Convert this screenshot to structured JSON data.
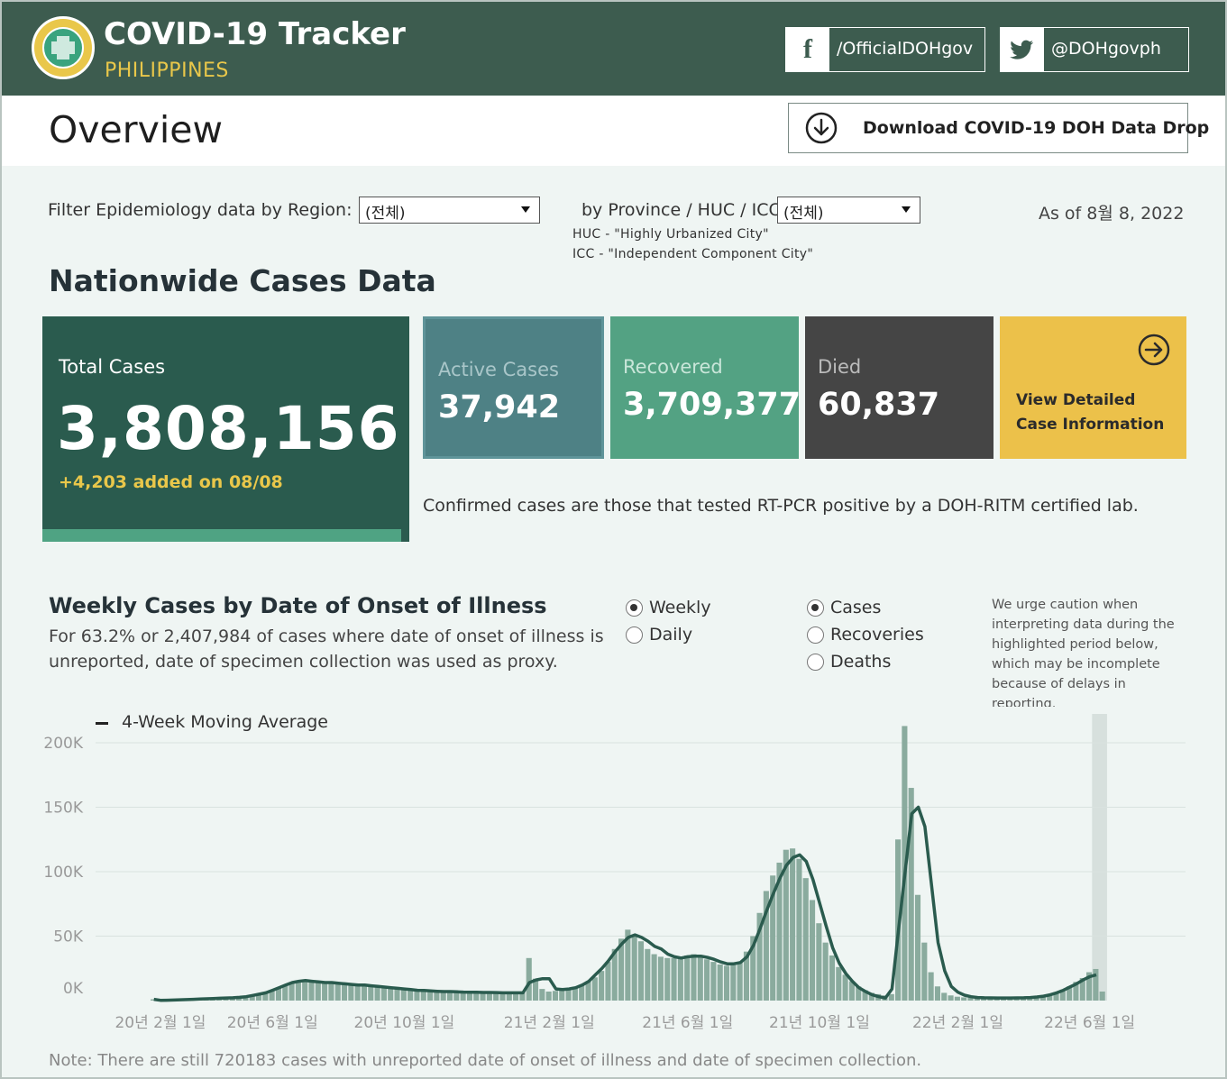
{
  "header": {
    "title": "COVID-19 Tracker",
    "subtitle": "PHILIPPINES",
    "facebook": "/OfficialDOHgov",
    "twitter": "@DOHgovph"
  },
  "overview": {
    "title": "Overview",
    "download_label": "Download COVID-19 DOH Data Drop"
  },
  "filters": {
    "region_label": "Filter Epidemiology data by Region:",
    "region_value": "(전체)",
    "province_label": "by Province / HUC / ICC:",
    "province_value": "(전체)",
    "huc_note": "HUC - \"Highly Urbanized City\"",
    "icc_note": "ICC - \"Independent Component City\"",
    "as_of": "As of 8월 8, 2022"
  },
  "nationwide": {
    "title": "Nationwide Cases Data",
    "total_label": "Total Cases",
    "total_value": "3,808,156",
    "added": "+4,203 added on 08/08",
    "active_label": "Active Cases",
    "active_value": "37,942",
    "recovered_label": "Recovered",
    "recovered_value": "3,709,377",
    "died_label": "Died",
    "died_value": "60,837",
    "detail_line1": "View Detailed",
    "detail_line2": "Case Information",
    "confirmed_note": "Confirmed cases are those that tested RT-PCR positive by a DOH-RITM certified lab."
  },
  "chart_section": {
    "title": "Weekly Cases by Date of Onset of Illness",
    "desc": "For 63.2% or 2,407,984 of cases where date of onset of illness is unreported, date of specimen collection was used as proxy.",
    "period_options": [
      "Weekly",
      "Daily"
    ],
    "period_selected": "Weekly",
    "metric_options": [
      "Cases",
      "Recoveries",
      "Deaths"
    ],
    "metric_selected": "Cases",
    "caution": "We urge caution when interpreting data during the highlighted period below, which may be incomplete because of delays in reporting.",
    "legend": "4-Week Moving Average",
    "footer_note": "Note: There are still 720183 cases with unreported date of onset of illness and date of specimen collection."
  },
  "colors": {
    "header_bg": "#3d5c4f",
    "accent_yellow": "#e9c74a",
    "total_card": "#2a5b4e",
    "active_card": "#4e8185",
    "recovered_card": "#53a283",
    "died_card": "#454545",
    "bar": "#8aab9e",
    "line": "#2a5b4e"
  },
  "chart_data": {
    "type": "bar",
    "title": "Weekly Cases by Date of Onset of Illness",
    "xlabel": "",
    "ylabel": "",
    "ylim": [
      0,
      210000
    ],
    "y_ticks": [
      0,
      50000,
      100000,
      150000,
      200000
    ],
    "y_tick_labels": [
      "0K",
      "50K",
      "100K",
      "150K",
      "200K"
    ],
    "x_tick_labels": [
      "20년 2월 1일",
      "20년 6월 1일",
      "20년 10월 1일",
      "21년 2월 1일",
      "21년 6월 1일",
      "21년 10월 1일",
      "22년 2월 1일",
      "22년 6월 1일"
    ],
    "x_tick_week_index": [
      1,
      18,
      38,
      60,
      81,
      101,
      122,
      142
    ],
    "series": [
      {
        "name": "Weekly Cases",
        "values": [
          1000,
          200,
          300,
          400,
          600,
          800,
          1000,
          1200,
          1400,
          1600,
          1800,
          2000,
          2200,
          2500,
          3000,
          4000,
          5000,
          6000,
          8000,
          10000,
          12000,
          14000,
          15000,
          15500,
          15000,
          14500,
          14000,
          14000,
          13500,
          13000,
          12500,
          12000,
          12000,
          11500,
          11000,
          10500,
          10000,
          9500,
          9000,
          8500,
          8000,
          7800,
          7500,
          7200,
          7000,
          7000,
          6800,
          6600,
          6500,
          6500,
          6300,
          6300,
          6200,
          6000,
          6000,
          6000,
          6000,
          33000,
          17000,
          9000,
          7000,
          7500,
          8000,
          9000,
          10000,
          12000,
          15000,
          18000,
          23000,
          30000,
          40000,
          48000,
          55000,
          50000,
          46000,
          40000,
          36000,
          34000,
          33000,
          33000,
          34000,
          35000,
          36000,
          34000,
          32000,
          30000,
          28000,
          27000,
          28000,
          30000,
          38000,
          50000,
          68000,
          85000,
          97000,
          107000,
          117000,
          118000,
          110000,
          95000,
          78000,
          60000,
          45000,
          35000,
          26000,
          20000,
          15000,
          11000,
          8000,
          6000,
          5000,
          4000,
          5000,
          125000,
          213000,
          165000,
          82000,
          45000,
          22000,
          11000,
          6000,
          4000,
          3000,
          2500,
          2300,
          2200,
          2100,
          2000,
          2000,
          2000,
          2100,
          2200,
          2400,
          2700,
          3200,
          4000,
          5000,
          6500,
          8500,
          11000,
          14500,
          17500,
          22000,
          24500,
          7000
        ],
        "color": "#8aab9e"
      },
      {
        "name": "4-Week Moving Average",
        "values": [
          1000,
          200,
          300,
          400,
          600,
          800,
          1000,
          1200,
          1400,
          1600,
          1800,
          2000,
          2200,
          2500,
          3000,
          4000,
          5000,
          6000,
          8000,
          10000,
          12000,
          14000,
          15000,
          15500,
          15000,
          14500,
          14000,
          14000,
          13500,
          13000,
          12500,
          12000,
          12000,
          11500,
          11000,
          10500,
          10000,
          9500,
          9000,
          8500,
          8000,
          7800,
          7500,
          7200,
          7000,
          7000,
          6800,
          6600,
          6500,
          6500,
          6300,
          6300,
          6200,
          6000,
          6000,
          6000,
          6000,
          14000,
          16000,
          17000,
          17000,
          9000,
          8500,
          9000,
          10000,
          12000,
          15000,
          20000,
          25000,
          31000,
          38000,
          44000,
          49000,
          51000,
          49000,
          46000,
          42000,
          40000,
          36000,
          34000,
          33000,
          34000,
          34500,
          34500,
          33500,
          32000,
          30000,
          28500,
          28500,
          29500,
          34000,
          43000,
          56000,
          70000,
          83000,
          95000,
          105000,
          111000,
          113000,
          108000,
          94000,
          76000,
          58000,
          41000,
          29000,
          21000,
          15000,
          10000,
          7000,
          4500,
          3000,
          2000,
          9000,
          55000,
          100000,
          145000,
          150000,
          135000,
          90000,
          45000,
          23000,
          11000,
          6500,
          4200,
          3000,
          2400,
          2200,
          2100,
          2000,
          2000,
          2000,
          2100,
          2200,
          2400,
          2800,
          3400,
          4500,
          6000,
          8000,
          10500,
          13000,
          16000,
          18500,
          20000
        ],
        "color": "#2a5b4e"
      }
    ],
    "highlight_last_weeks": 2
  }
}
